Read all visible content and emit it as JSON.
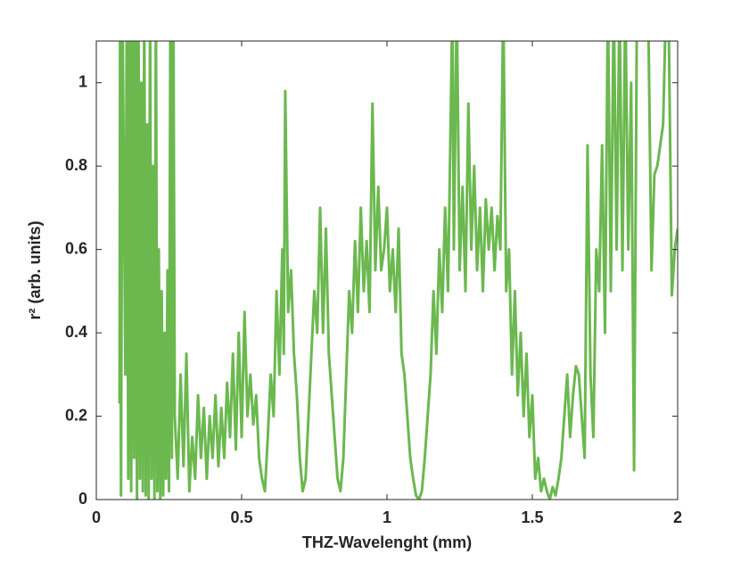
{
  "chart_data": {
    "type": "line",
    "xlabel": "THZ-Wavelenght (mm)",
    "ylabel": "r² (arb. units)",
    "xlim": [
      0,
      2
    ],
    "xticks": [
      0,
      0.5,
      1,
      1.5,
      2
    ],
    "ylim": [
      0,
      1.1
    ],
    "yticks": [
      0,
      0.2,
      0.4,
      0.6,
      0.8,
      1
    ],
    "series": [
      {
        "color": "#6bb84f",
        "x": [
          0.08,
          0.082,
          0.085,
          0.09,
          0.1,
          0.105,
          0.11,
          0.115,
          0.12,
          0.125,
          0.13,
          0.135,
          0.14,
          0.145,
          0.15,
          0.155,
          0.16,
          0.165,
          0.17,
          0.175,
          0.18,
          0.185,
          0.19,
          0.195,
          0.2,
          0.205,
          0.21,
          0.215,
          0.22,
          0.225,
          0.23,
          0.235,
          0.24,
          0.245,
          0.25,
          0.255,
          0.26,
          0.265,
          0.27,
          0.28,
          0.29,
          0.3,
          0.31,
          0.32,
          0.33,
          0.34,
          0.35,
          0.36,
          0.37,
          0.38,
          0.39,
          0.4,
          0.41,
          0.42,
          0.43,
          0.44,
          0.45,
          0.46,
          0.47,
          0.48,
          0.49,
          0.5,
          0.51,
          0.52,
          0.53,
          0.54,
          0.55,
          0.56,
          0.57,
          0.58,
          0.59,
          0.6,
          0.61,
          0.62,
          0.63,
          0.64,
          0.645,
          0.65,
          0.66,
          0.67,
          0.68,
          0.69,
          0.7,
          0.71,
          0.72,
          0.73,
          0.74,
          0.75,
          0.76,
          0.77,
          0.78,
          0.79,
          0.8,
          0.81,
          0.82,
          0.83,
          0.84,
          0.85,
          0.86,
          0.87,
          0.88,
          0.89,
          0.9,
          0.91,
          0.92,
          0.93,
          0.94,
          0.95,
          0.96,
          0.97,
          0.98,
          0.99,
          1.0,
          1.01,
          1.02,
          1.03,
          1.04,
          1.05,
          1.06,
          1.07,
          1.08,
          1.09,
          1.1,
          1.11,
          1.12,
          1.13,
          1.14,
          1.15,
          1.16,
          1.17,
          1.18,
          1.19,
          1.2,
          1.21,
          1.22,
          1.225,
          1.23,
          1.24,
          1.25,
          1.26,
          1.27,
          1.28,
          1.29,
          1.3,
          1.31,
          1.32,
          1.33,
          1.34,
          1.35,
          1.36,
          1.37,
          1.38,
          1.39,
          1.4,
          1.41,
          1.42,
          1.43,
          1.44,
          1.45,
          1.46,
          1.47,
          1.48,
          1.49,
          1.5,
          1.51,
          1.52,
          1.53,
          1.54,
          1.55,
          1.56,
          1.57,
          1.58,
          1.59,
          1.6,
          1.61,
          1.62,
          1.63,
          1.64,
          1.65,
          1.66,
          1.67,
          1.68,
          1.69,
          1.7,
          1.71,
          1.72,
          1.73,
          1.74,
          1.75,
          1.76,
          1.77,
          1.78,
          1.79,
          1.8,
          1.81,
          1.82,
          1.83,
          1.84,
          1.85,
          1.86,
          1.87,
          1.88,
          1.89,
          1.9,
          1.91,
          1.92,
          1.93,
          1.94,
          1.95,
          1.96,
          1.97,
          1.98,
          1.99,
          2.0
        ],
        "values": [
          0.23,
          1.2,
          0.01,
          1.2,
          0.3,
          1.2,
          0.05,
          1.2,
          0.02,
          1.2,
          0.1,
          1.2,
          0.0,
          1.2,
          0.05,
          1.0,
          0.02,
          1.2,
          0.01,
          0.9,
          0.0,
          1.2,
          0.05,
          0.8,
          0.0,
          1.2,
          0.02,
          0.6,
          0.0,
          0.5,
          0.01,
          0.4,
          0.05,
          0.55,
          0.02,
          1.2,
          0.1,
          1.2,
          0.2,
          0.05,
          0.3,
          0.08,
          0.35,
          0.02,
          0.15,
          0.05,
          0.25,
          0.1,
          0.22,
          0.05,
          0.2,
          0.1,
          0.25,
          0.08,
          0.22,
          0.1,
          0.28,
          0.15,
          0.35,
          0.12,
          0.4,
          0.15,
          0.45,
          0.2,
          0.3,
          0.18,
          0.25,
          0.1,
          0.05,
          0.02,
          0.15,
          0.3,
          0.2,
          0.5,
          0.3,
          0.6,
          0.35,
          0.98,
          0.45,
          0.55,
          0.35,
          0.25,
          0.1,
          0.02,
          0.05,
          0.2,
          0.35,
          0.5,
          0.4,
          0.7,
          0.4,
          0.65,
          0.35,
          0.25,
          0.15,
          0.05,
          0.02,
          0.1,
          0.3,
          0.5,
          0.4,
          0.62,
          0.45,
          0.7,
          0.5,
          0.62,
          0.45,
          0.95,
          0.55,
          0.75,
          0.55,
          0.6,
          0.7,
          0.5,
          0.6,
          0.45,
          0.65,
          0.35,
          0.3,
          0.2,
          0.1,
          0.05,
          0.01,
          0.0,
          0.02,
          0.1,
          0.2,
          0.3,
          0.5,
          0.35,
          0.6,
          0.45,
          0.7,
          0.5,
          0.95,
          1.2,
          0.6,
          1.2,
          0.55,
          0.75,
          0.5,
          0.95,
          0.6,
          0.8,
          0.55,
          0.7,
          0.5,
          0.72,
          0.6,
          0.7,
          0.55,
          0.68,
          0.6,
          1.2,
          0.5,
          0.6,
          0.3,
          0.5,
          0.25,
          0.4,
          0.2,
          0.35,
          0.15,
          0.25,
          0.05,
          0.1,
          0.02,
          0.05,
          0.02,
          0.0,
          0.03,
          0.01,
          0.05,
          0.1,
          0.2,
          0.3,
          0.15,
          0.25,
          0.32,
          0.3,
          0.2,
          0.1,
          0.85,
          0.3,
          0.15,
          0.6,
          0.5,
          0.85,
          0.4,
          1.2,
          0.5,
          1.2,
          0.6,
          1.2,
          0.55,
          1.2,
          0.6,
          1.0,
          0.07,
          1.2,
          1.2,
          1.2,
          1.2,
          1.1,
          0.55,
          0.78,
          0.8,
          0.85,
          0.9,
          1.2,
          1.1,
          0.49,
          0.6,
          0.65
        ]
      }
    ]
  }
}
